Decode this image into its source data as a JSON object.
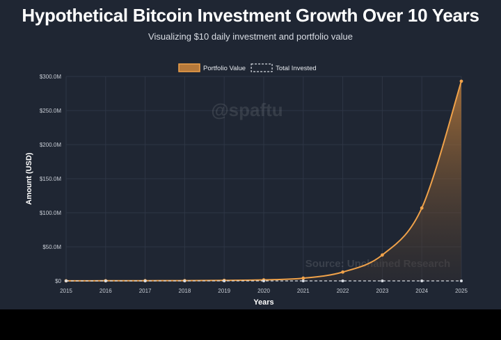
{
  "header": {
    "title": "Hypothetical Bitcoin Investment Growth Over 10 Years",
    "subtitle": "Visualizing $10 daily investment and portfolio value"
  },
  "watermark": "@spaftu",
  "source_overlay": "Source: Unchained Research",
  "colors": {
    "portfolio": "#f0a24a",
    "invested": "#d8dce3",
    "background": "#1f2633",
    "grid": "#2e3645"
  },
  "chart_data": {
    "type": "area",
    "xlabel": "Years",
    "ylabel": "Amount (USD)",
    "categories": [
      "2015",
      "2016",
      "2017",
      "2018",
      "2019",
      "2020",
      "2021",
      "2022",
      "2023",
      "2024",
      "2025"
    ],
    "ylim": [
      0,
      300
    ],
    "y_ticks": [
      0,
      50,
      100,
      150,
      200,
      250,
      300
    ],
    "y_tick_labels": [
      "$0",
      "$50.0M",
      "$100.0M",
      "$150.0M",
      "$200.0M",
      "$250.0M",
      "$300.0M"
    ],
    "grid": true,
    "legend_position": "top-center",
    "series": [
      {
        "name": "Portfolio Value",
        "style": "solid-filled",
        "color": "#f0a24a",
        "values": [
          0.1,
          0.2,
          0.3,
          0.4,
          0.8,
          1.5,
          4.0,
          13.0,
          38.0,
          107.0,
          293.0
        ]
      },
      {
        "name": "Total Invested",
        "style": "dashed",
        "color": "#d8dce3",
        "values": [
          0.0,
          0.0,
          0.0,
          0.0,
          0.0,
          0.0,
          0.0,
          0.0,
          0.0,
          0.0,
          0.0
        ]
      }
    ]
  }
}
